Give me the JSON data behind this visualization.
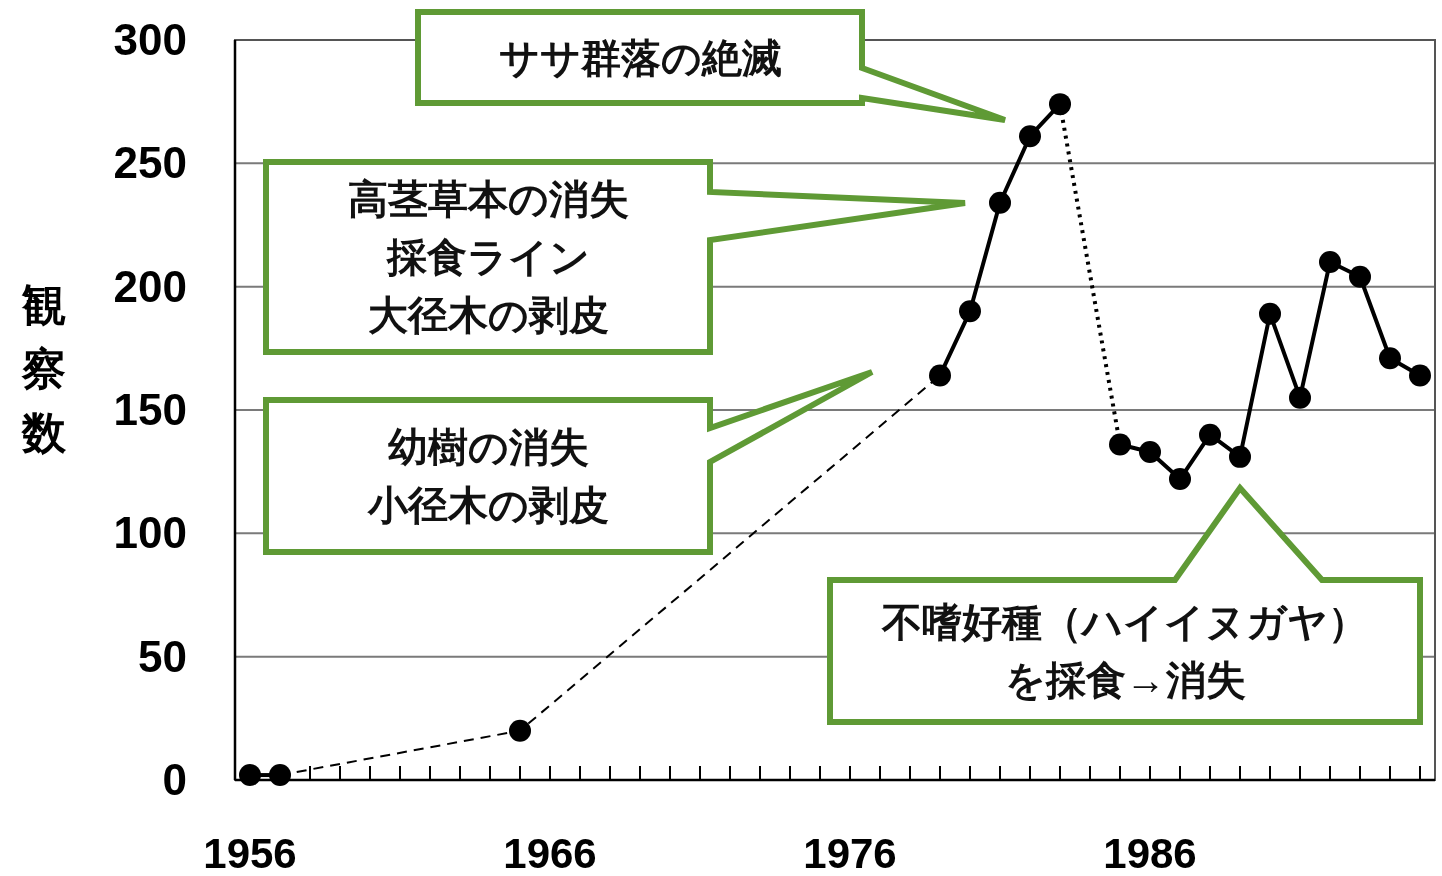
{
  "chart_data": {
    "type": "line",
    "ylabel": "観察数",
    "xlim": [
      1955.5,
      1995.5
    ],
    "ylim": [
      0,
      300
    ],
    "yticks": [
      0,
      50,
      100,
      150,
      200,
      250,
      300
    ],
    "xticks": [
      1956,
      {
        "value": 1957,
        "label": null
      },
      {
        "value": 1958,
        "label": null
      },
      {
        "value": 1959,
        "label": null
      },
      {
        "value": 1960,
        "label": null
      },
      {
        "value": 1961,
        "label": null
      },
      {
        "value": 1962,
        "label": null
      },
      {
        "value": 1963,
        "label": null
      },
      {
        "value": 1964,
        "label": null
      },
      {
        "value": 1965,
        "label": null
      },
      1966,
      {
        "value": 1967,
        "label": null
      },
      {
        "value": 1968,
        "label": null
      },
      {
        "value": 1969,
        "label": null
      },
      {
        "value": 1970,
        "label": null
      },
      {
        "value": 1971,
        "label": null
      },
      {
        "value": 1972,
        "label": null
      },
      {
        "value": 1973,
        "label": null
      },
      {
        "value": 1974,
        "label": null
      },
      {
        "value": 1975,
        "label": null
      },
      1976,
      {
        "value": 1977,
        "label": null
      },
      {
        "value": 1978,
        "label": null
      },
      {
        "value": 1979,
        "label": null
      },
      {
        "value": 1980,
        "label": null
      },
      {
        "value": 1981,
        "label": null
      },
      {
        "value": 1982,
        "label": null
      },
      {
        "value": 1983,
        "label": null
      },
      {
        "value": 1984,
        "label": null
      },
      {
        "value": 1985,
        "label": null
      },
      1986,
      {
        "value": 1987,
        "label": null
      },
      {
        "value": 1988,
        "label": null
      },
      {
        "value": 1989,
        "label": null
      },
      {
        "value": 1990,
        "label": null
      },
      {
        "value": 1991,
        "label": null
      },
      {
        "value": 1992,
        "label": null
      },
      {
        "value": 1993,
        "label": null
      },
      {
        "value": 1994,
        "label": null
      },
      {
        "value": 1995,
        "label": null
      }
    ],
    "grid": "y",
    "series": [
      {
        "x": [
          1956,
          1957
        ],
        "values": [
          2,
          2
        ],
        "color": "#000000",
        "line_style": "solid",
        "marker": "none"
      },
      {
        "x": [
          1957,
          1965,
          1979
        ],
        "values": [
          2,
          20,
          164
        ],
        "color": "#000000",
        "line_style": "dashed",
        "marker": "none"
      },
      {
        "x": [
          1979,
          1980,
          1981,
          1982,
          1983
        ],
        "values": [
          164,
          190,
          234,
          261,
          274
        ],
        "color": "#000000",
        "line_style": "solid",
        "marker": "none"
      },
      {
        "x": [
          1983,
          1985
        ],
        "values": [
          274,
          136
        ],
        "color": "#000000",
        "line_style": "dotted",
        "marker": "none"
      },
      {
        "x": [
          1985,
          1986,
          1987,
          1988,
          1989,
          1990,
          1991,
          1992,
          1993,
          1994,
          1995
        ],
        "values": [
          136,
          133,
          122,
          140,
          131,
          189,
          155,
          210,
          204,
          171,
          164
        ],
        "color": "#000000",
        "line_style": "solid",
        "marker": "none"
      },
      {
        "type": "scatter",
        "x": [
          1956,
          1957,
          1965,
          1979,
          1980,
          1981,
          1982,
          1983,
          1985,
          1986,
          1987,
          1988,
          1989,
          1990,
          1991,
          1992,
          1993,
          1994,
          1995
        ],
        "values": [
          2,
          2,
          20,
          164,
          190,
          234,
          261,
          274,
          136,
          133,
          122,
          140,
          131,
          189,
          155,
          210,
          204,
          171,
          164
        ],
        "color": "#000000",
        "marker": "circle"
      }
    ],
    "annotations": [
      "ササ群落の絶滅",
      "高茎草本の消失",
      "採食ライン",
      "大径木の剥皮",
      "幼樹の消失",
      "小径木の剥皮",
      "不嗜好種（ハイイヌガヤ）を採食→消失"
    ]
  }
}
